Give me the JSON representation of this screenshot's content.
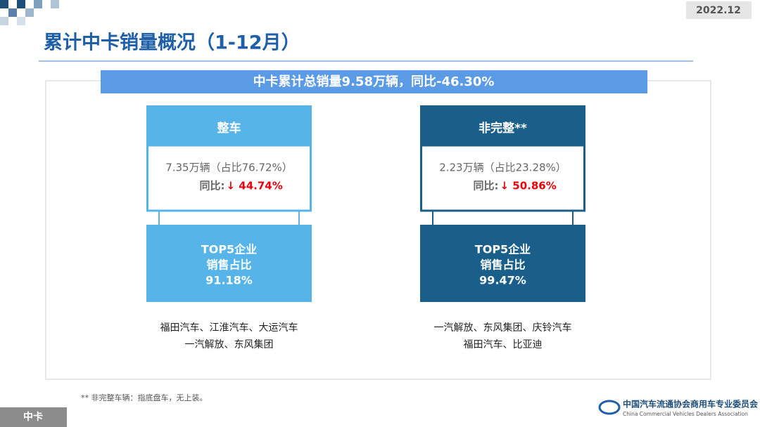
{
  "header": {
    "date": "2022.12",
    "title": "累计中卡销量概况（1-12月）"
  },
  "banner": "中卡累计总销量9.58万辆，同比-46.30%",
  "cards": [
    {
      "title": "整车",
      "volume": "7.35万辆（占比76.72%）",
      "yoy_label": "同比:",
      "yoy_value": "↓ 44.74%",
      "top5": [
        "TOP5企业",
        "销售占比",
        "91.18%"
      ],
      "companies": [
        "福田汽车、江淮汽车、大运汽车",
        "一汽解放、东风集团"
      ]
    },
    {
      "title": "非完整**",
      "volume": "2.23万辆（占比23.28%）",
      "yoy_label": "同比:",
      "yoy_value": "↓ 50.86%",
      "top5": [
        "TOP5企业",
        "销售占比",
        "99.47%"
      ],
      "companies": [
        "一汽解放、东风集团、庆铃汽车",
        "福田汽车、比亚迪"
      ]
    }
  ],
  "footnote": "** 非完整车辆：指底盘车，无上装。",
  "footer": {
    "section": "中卡",
    "org_cn": "中国汽车流通协会商用车专业委员会",
    "org_en": "China Commercial Vehicles Dealers Association"
  }
}
